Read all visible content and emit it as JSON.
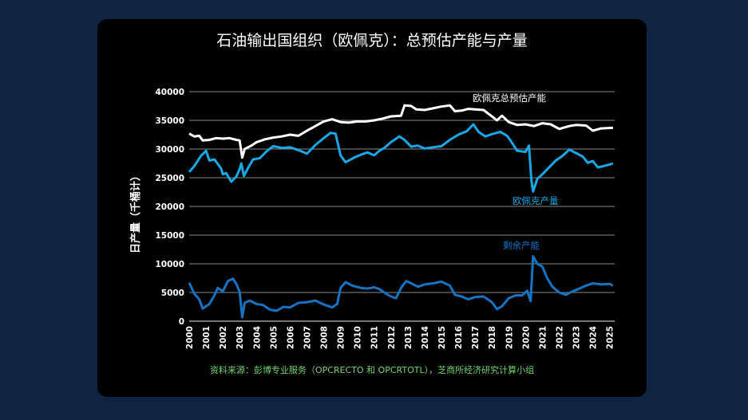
{
  "chart_data": {
    "type": "line",
    "title": "石油输出国组织（欧佩克）：总预估产能与产量",
    "ylabel": "日产量（千桶计）",
    "xlabel": "",
    "ylim": [
      0,
      40000
    ],
    "yticks": [
      "0",
      "5000",
      "10000",
      "15000",
      "20000",
      "25000",
      "30000",
      "35000",
      "40000"
    ],
    "xticks": [
      "2000",
      "2001",
      "2002",
      "2003",
      "2004",
      "2005",
      "2006",
      "2007",
      "2008",
      "2009",
      "2010",
      "2011",
      "2012",
      "2013",
      "2014",
      "2015",
      "2016",
      "2017",
      "2018",
      "2019",
      "2020",
      "2021",
      "2022",
      "2023",
      "2024",
      "2025"
    ],
    "grid": "horizontal",
    "source": "资料来源：彭博专业服务（OPCRECTO 和 OPCRTOTL），芝商所经济研究计算小组",
    "series": [
      {
        "name": "欧佩克总预估产能",
        "color": "#ffffff",
        "points": [
          [
            2000.0,
            32700
          ],
          [
            2000.3,
            32200
          ],
          [
            2000.6,
            32300
          ],
          [
            2000.8,
            31500
          ],
          [
            2001.2,
            31600
          ],
          [
            2001.6,
            31900
          ],
          [
            2002.0,
            31800
          ],
          [
            2002.4,
            31900
          ],
          [
            2002.8,
            31600
          ],
          [
            2003.0,
            31500
          ],
          [
            2003.15,
            28500
          ],
          [
            2003.3,
            30000
          ],
          [
            2003.7,
            30600
          ],
          [
            2004.0,
            31200
          ],
          [
            2004.5,
            31700
          ],
          [
            2005.0,
            32000
          ],
          [
            2005.5,
            32200
          ],
          [
            2006.0,
            32500
          ],
          [
            2006.5,
            32300
          ],
          [
            2007.0,
            33200
          ],
          [
            2007.5,
            34000
          ],
          [
            2008.0,
            34800
          ],
          [
            2008.5,
            35200
          ],
          [
            2009.0,
            34700
          ],
          [
            2009.5,
            34600
          ],
          [
            2010.0,
            34800
          ],
          [
            2010.5,
            34800
          ],
          [
            2011.0,
            35000
          ],
          [
            2011.5,
            35300
          ],
          [
            2012.0,
            35700
          ],
          [
            2012.6,
            35800
          ],
          [
            2012.8,
            37600
          ],
          [
            2013.2,
            37500
          ],
          [
            2013.5,
            36900
          ],
          [
            2014.0,
            36800
          ],
          [
            2014.5,
            37100
          ],
          [
            2015.0,
            37400
          ],
          [
            2015.5,
            37600
          ],
          [
            2015.8,
            36600
          ],
          [
            2016.2,
            36700
          ],
          [
            2016.6,
            37000
          ],
          [
            2017.0,
            36900
          ],
          [
            2017.5,
            36800
          ],
          [
            2018.0,
            35700
          ],
          [
            2018.3,
            35000
          ],
          [
            2018.6,
            35800
          ],
          [
            2019.0,
            34700
          ],
          [
            2019.5,
            34200
          ],
          [
            2020.0,
            34300
          ],
          [
            2020.5,
            34000
          ],
          [
            2021.0,
            34500
          ],
          [
            2021.5,
            34300
          ],
          [
            2022.0,
            33500
          ],
          [
            2022.6,
            34000
          ],
          [
            2023.0,
            34200
          ],
          [
            2023.6,
            34100
          ],
          [
            2024.0,
            33200
          ],
          [
            2024.5,
            33600
          ],
          [
            2025.2,
            33700
          ]
        ]
      },
      {
        "name": "欧佩克产量",
        "color": "#1aa7e6",
        "points": [
          [
            2000.0,
            26000
          ],
          [
            2000.3,
            27000
          ],
          [
            2000.7,
            28800
          ],
          [
            2001.0,
            29700
          ],
          [
            2001.2,
            28000
          ],
          [
            2001.5,
            28200
          ],
          [
            2001.9,
            26600
          ],
          [
            2002.0,
            25600
          ],
          [
            2002.2,
            25800
          ],
          [
            2002.5,
            24300
          ],
          [
            2002.8,
            25200
          ],
          [
            2003.0,
            26500
          ],
          [
            2003.1,
            27500
          ],
          [
            2003.25,
            25300
          ],
          [
            2003.5,
            26700
          ],
          [
            2003.8,
            28200
          ],
          [
            2004.2,
            28400
          ],
          [
            2004.6,
            29600
          ],
          [
            2005.0,
            30500
          ],
          [
            2005.5,
            30200
          ],
          [
            2006.0,
            30300
          ],
          [
            2006.5,
            29800
          ],
          [
            2007.0,
            29200
          ],
          [
            2007.5,
            30700
          ],
          [
            2008.0,
            31900
          ],
          [
            2008.4,
            32800
          ],
          [
            2008.7,
            32700
          ],
          [
            2009.0,
            28900
          ],
          [
            2009.3,
            27700
          ],
          [
            2009.8,
            28500
          ],
          [
            2010.2,
            29000
          ],
          [
            2010.6,
            29400
          ],
          [
            2011.0,
            28900
          ],
          [
            2011.3,
            29700
          ],
          [
            2011.6,
            30200
          ],
          [
            2012.0,
            31200
          ],
          [
            2012.5,
            32200
          ],
          [
            2012.8,
            31600
          ],
          [
            2013.2,
            30400
          ],
          [
            2013.6,
            30600
          ],
          [
            2014.0,
            30100
          ],
          [
            2014.5,
            30300
          ],
          [
            2015.0,
            30500
          ],
          [
            2015.5,
            31600
          ],
          [
            2016.0,
            32500
          ],
          [
            2016.5,
            33100
          ],
          [
            2016.9,
            34300
          ],
          [
            2017.2,
            33000
          ],
          [
            2017.6,
            32200
          ],
          [
            2018.0,
            32600
          ],
          [
            2018.5,
            33000
          ],
          [
            2018.9,
            32300
          ],
          [
            2019.1,
            31500
          ],
          [
            2019.5,
            29700
          ],
          [
            2020.0,
            29500
          ],
          [
            2020.2,
            30600
          ],
          [
            2020.35,
            24500
          ],
          [
            2020.45,
            22600
          ],
          [
            2020.7,
            24800
          ],
          [
            2021.0,
            25600
          ],
          [
            2021.4,
            26800
          ],
          [
            2021.8,
            28000
          ],
          [
            2022.2,
            28800
          ],
          [
            2022.6,
            29900
          ],
          [
            2023.0,
            29300
          ],
          [
            2023.4,
            28700
          ],
          [
            2023.7,
            27600
          ],
          [
            2024.0,
            27900
          ],
          [
            2024.3,
            26800
          ],
          [
            2024.6,
            27000
          ],
          [
            2025.0,
            27300
          ],
          [
            2025.2,
            27500
          ]
        ]
      },
      {
        "name": "剩余产能",
        "color": "#1673c4",
        "points": [
          [
            2000.0,
            6700
          ],
          [
            2000.3,
            4800
          ],
          [
            2000.6,
            3800
          ],
          [
            2000.8,
            2200
          ],
          [
            2001.2,
            3000
          ],
          [
            2001.5,
            4500
          ],
          [
            2001.7,
            5800
          ],
          [
            2002.0,
            5200
          ],
          [
            2002.3,
            7000
          ],
          [
            2002.6,
            7400
          ],
          [
            2002.8,
            6500
          ],
          [
            2003.0,
            5100
          ],
          [
            2003.15,
            700
          ],
          [
            2003.3,
            3200
          ],
          [
            2003.6,
            3600
          ],
          [
            2004.0,
            3000
          ],
          [
            2004.4,
            2800
          ],
          [
            2004.8,
            2000
          ],
          [
            2005.2,
            1800
          ],
          [
            2005.6,
            2500
          ],
          [
            2006.0,
            2400
          ],
          [
            2006.5,
            3200
          ],
          [
            2007.0,
            3300
          ],
          [
            2007.5,
            3600
          ],
          [
            2008.0,
            2900
          ],
          [
            2008.5,
            2400
          ],
          [
            2008.8,
            3000
          ],
          [
            2009.0,
            5800
          ],
          [
            2009.3,
            6800
          ],
          [
            2009.7,
            6200
          ],
          [
            2010.2,
            5800
          ],
          [
            2010.6,
            5700
          ],
          [
            2011.0,
            5900
          ],
          [
            2011.3,
            5600
          ],
          [
            2011.7,
            4800
          ],
          [
            2012.0,
            4300
          ],
          [
            2012.3,
            4000
          ],
          [
            2012.6,
            5800
          ],
          [
            2012.9,
            7000
          ],
          [
            2013.2,
            6600
          ],
          [
            2013.6,
            6000
          ],
          [
            2014.0,
            6400
          ],
          [
            2014.5,
            6600
          ],
          [
            2015.0,
            6900
          ],
          [
            2015.5,
            6200
          ],
          [
            2015.8,
            4600
          ],
          [
            2016.2,
            4300
          ],
          [
            2016.6,
            3800
          ],
          [
            2017.0,
            4200
          ],
          [
            2017.5,
            4300
          ],
          [
            2018.0,
            3300
          ],
          [
            2018.3,
            2100
          ],
          [
            2018.6,
            2600
          ],
          [
            2019.0,
            4000
          ],
          [
            2019.4,
            4500
          ],
          [
            2019.8,
            4500
          ],
          [
            2020.1,
            5300
          ],
          [
            2020.3,
            3500
          ],
          [
            2020.45,
            11300
          ],
          [
            2020.7,
            10000
          ],
          [
            2021.0,
            9500
          ],
          [
            2021.3,
            7400
          ],
          [
            2021.6,
            6000
          ],
          [
            2022.0,
            5000
          ],
          [
            2022.4,
            4600
          ],
          [
            2022.8,
            5200
          ],
          [
            2023.2,
            5700
          ],
          [
            2023.6,
            6200
          ],
          [
            2024.0,
            6600
          ],
          [
            2024.5,
            6400
          ],
          [
            2025.0,
            6500
          ],
          [
            2025.2,
            6200
          ]
        ]
      }
    ]
  }
}
